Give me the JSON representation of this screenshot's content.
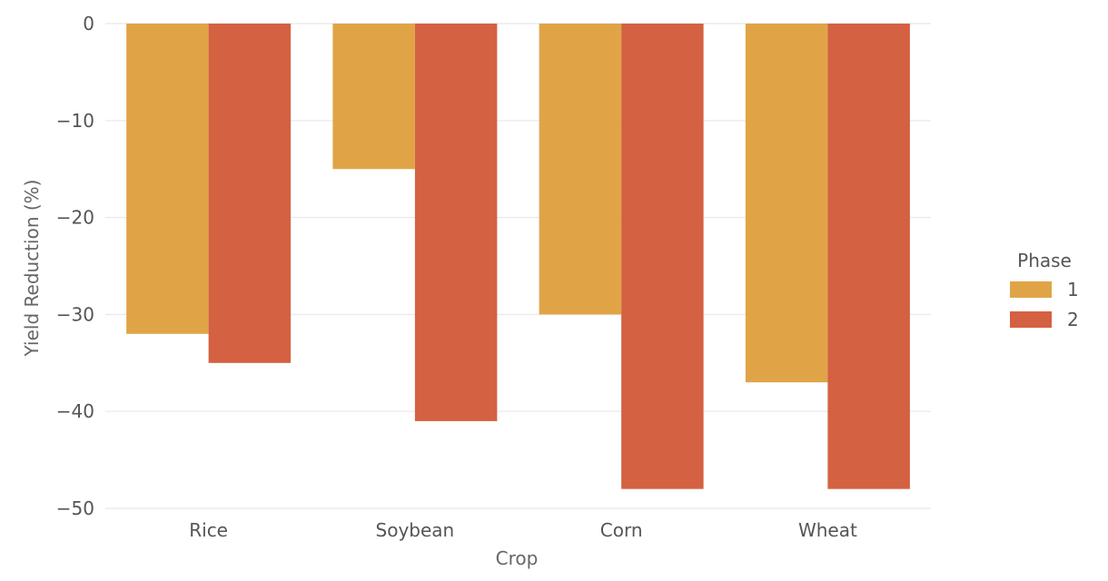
{
  "chart_data": {
    "type": "bar",
    "title": "",
    "xlabel": "Crop",
    "ylabel": "Yield Reduction (%)",
    "categories": [
      "Rice",
      "Soybean",
      "Corn",
      "Wheat"
    ],
    "series": [
      {
        "name": "1",
        "values": [
          -32,
          -15,
          -30,
          -37
        ],
        "color": "#E0A447"
      },
      {
        "name": "2",
        "values": [
          -35,
          -41,
          -48,
          -48
        ],
        "color": "#D46141"
      }
    ],
    "ylim": [
      -50,
      0
    ],
    "yticks": [
      0,
      -10,
      -20,
      -30,
      -40,
      -50
    ],
    "ytick_labels": [
      "0",
      "−10",
      "−20",
      "−30",
      "−40",
      "−50"
    ],
    "grid": true,
    "legend": {
      "title": "Phase",
      "position": "right"
    }
  }
}
